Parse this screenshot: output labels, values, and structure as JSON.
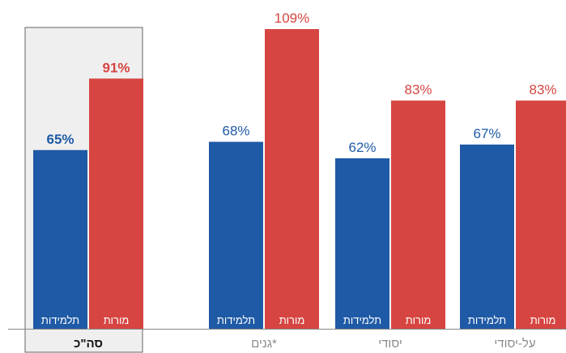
{
  "chart_data": {
    "type": "bar",
    "categories": [
      "סה\"כ",
      "גנים*",
      "יסודי",
      "על-יסודי"
    ],
    "highlighted_category": "סה\"כ",
    "ylim": [
      0,
      115
    ],
    "grid": false,
    "value_suffix": "%",
    "series": [
      {
        "name": "תלמידות",
        "color": "#1f5aa6",
        "values": [
          65,
          68,
          62,
          67
        ]
      },
      {
        "name": "מורות",
        "color": "#d64541",
        "values": [
          91,
          109,
          83,
          83
        ]
      }
    ]
  },
  "colors": {
    "highlight_fill": "#efefef",
    "highlight_border": "#666666",
    "axis": "#888888"
  }
}
